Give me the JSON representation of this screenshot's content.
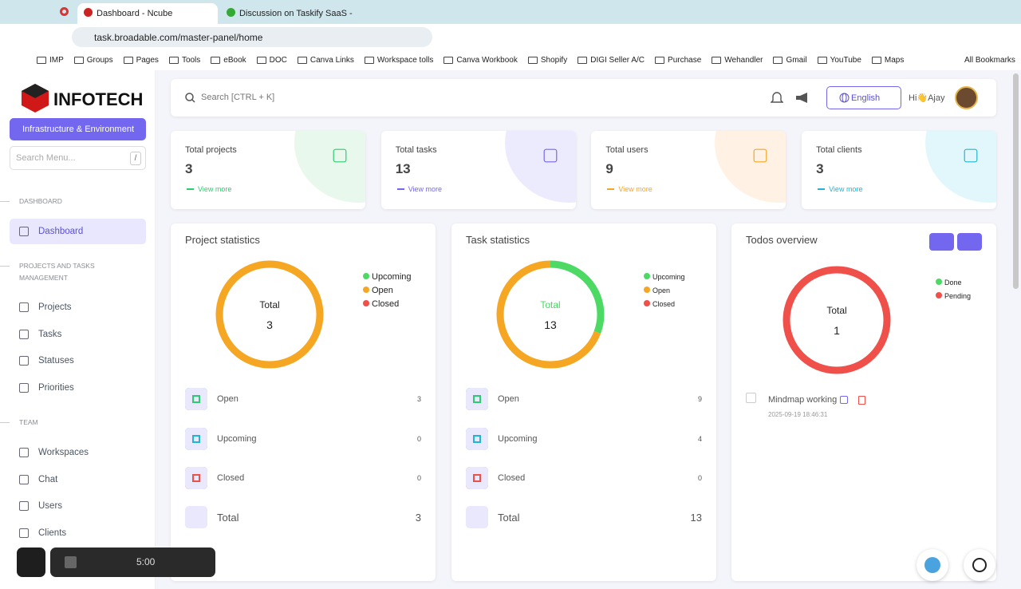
{
  "browser": {
    "tabs": [
      "Dashboard - Ncube",
      "Discussion on Taskify SaaS -"
    ],
    "url": "task.broadable.com/master-panel/home",
    "bookmarks": [
      "IMP",
      "Groups",
      "Pages",
      "Tools",
      "eBook",
      "DOC",
      "Canva Links",
      "Workspace tolls",
      "Canva Workbook",
      "Shopify",
      "DIGI Seller A/C",
      "Purchase",
      "Wehandler",
      "Gmail",
      "YouTube",
      "Maps"
    ],
    "all_bookmarks": "All Bookmarks"
  },
  "sidebar": {
    "logo": "INFOTECH",
    "workspace": "Infrastructure & Environment",
    "search_placeholder": "Search Menu...",
    "search_shortcut": "/",
    "sections": [
      {
        "title": "DASHBOARD",
        "items": [
          "Dashboard"
        ]
      },
      {
        "title": "PROJECTS AND TASKS MANAGEMENT",
        "items": [
          "Projects",
          "Tasks",
          "Statuses",
          "Priorities"
        ]
      },
      {
        "title": "TEAM",
        "items": [
          "Workspaces",
          "Chat",
          "Users",
          "Clients"
        ]
      }
    ]
  },
  "topbar": {
    "search": "Search [CTRL + K]",
    "language": "English",
    "greeting": "Hi👋Ajay"
  },
  "stats": [
    {
      "label": "Total projects",
      "value": 3,
      "link": "View more"
    },
    {
      "label": "Total tasks",
      "value": 13,
      "link": "View more"
    },
    {
      "label": "Total users",
      "value": 9,
      "link": "View more"
    },
    {
      "label": "Total clients",
      "value": 3,
      "link": "View more"
    }
  ],
  "project_statistics": {
    "title": "Project statistics",
    "center_label": "Total",
    "total": 3,
    "legend": [
      {
        "name": "Upcoming",
        "color": "#4cd964"
      },
      {
        "name": "Open",
        "color": "#f5a623"
      },
      {
        "name": "Closed",
        "color": "#f0504a"
      }
    ],
    "rows": [
      {
        "label": "Open",
        "value": 3
      },
      {
        "label": "Upcoming",
        "value": 0
      },
      {
        "label": "Closed",
        "value": 0
      }
    ],
    "total_row": {
      "label": "Total",
      "value": 3
    }
  },
  "task_statistics": {
    "title": "Task statistics",
    "center_label": "Total",
    "total": 13,
    "legend": [
      {
        "name": "Upcoming",
        "color": "#4cd964"
      },
      {
        "name": "Open",
        "color": "#f5a623"
      },
      {
        "name": "Closed",
        "color": "#f0504a"
      }
    ],
    "rows": [
      {
        "label": "Open",
        "value": 9
      },
      {
        "label": "Upcoming",
        "value": 4
      },
      {
        "label": "Closed",
        "value": 0
      }
    ],
    "total_row": {
      "label": "Total",
      "value": 13
    }
  },
  "todos": {
    "title": "Todos overview",
    "center_label": "Total",
    "total": 1,
    "legend": [
      {
        "name": "Done",
        "color": "#4cd964",
        "value": 0
      },
      {
        "name": "Pending",
        "color": "#f0504a",
        "value": 1
      }
    ],
    "items": [
      {
        "title": "Mindmap working",
        "date": "2025-09-19 18:46:31"
      }
    ]
  },
  "recorder": {
    "time": "5:00"
  }
}
